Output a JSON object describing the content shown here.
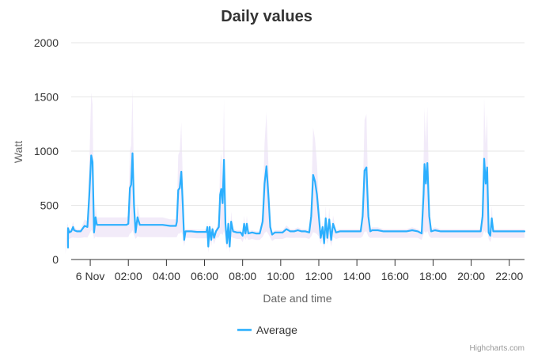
{
  "chart_data": {
    "type": "line",
    "title": "Daily values",
    "xlabel": "Date and time",
    "ylabel": "Watt",
    "ylim": [
      0,
      2000
    ],
    "xlim": [
      -1.0,
      22.8
    ],
    "yticks": [
      0,
      500,
      1000,
      1500,
      2000
    ],
    "xticks": [
      {
        "x": 0,
        "label": "6 Nov"
      },
      {
        "x": 2,
        "label": "02:00"
      },
      {
        "x": 4,
        "label": "04:00"
      },
      {
        "x": 6,
        "label": "06:00"
      },
      {
        "x": 8,
        "label": "08:00"
      },
      {
        "x": 10,
        "label": "10:00"
      },
      {
        "x": 12,
        "label": "12:00"
      },
      {
        "x": 14,
        "label": "14:00"
      },
      {
        "x": 16,
        "label": "16:00"
      },
      {
        "x": 18,
        "label": "18:00"
      },
      {
        "x": 20,
        "label": "20:00"
      },
      {
        "x": 22,
        "label": "22:00"
      }
    ],
    "grid": true,
    "legend_position": "bottom-center",
    "series": [
      {
        "name": "Average",
        "color": "#2caffe",
        "points": [
          [
            -1.3,
            110
          ],
          [
            -1.2,
            290
          ],
          [
            -1.1,
            250
          ],
          [
            -1.0,
            260
          ],
          [
            -0.9,
            300
          ],
          [
            -0.85,
            270
          ],
          [
            -0.7,
            260
          ],
          [
            -0.5,
            260
          ],
          [
            -0.3,
            310
          ],
          [
            -0.15,
            300
          ],
          [
            -0.05,
            600
          ],
          [
            0.05,
            960
          ],
          [
            0.12,
            900
          ],
          [
            0.2,
            250
          ],
          [
            0.28,
            390
          ],
          [
            0.35,
            320
          ],
          [
            0.6,
            320
          ],
          [
            0.9,
            320
          ],
          [
            1.2,
            320
          ],
          [
            1.5,
            320
          ],
          [
            1.8,
            320
          ],
          [
            1.9,
            320
          ],
          [
            2.0,
            330
          ],
          [
            2.08,
            660
          ],
          [
            2.15,
            690
          ],
          [
            2.22,
            980
          ],
          [
            2.3,
            500
          ],
          [
            2.38,
            250
          ],
          [
            2.48,
            390
          ],
          [
            2.6,
            320
          ],
          [
            3.0,
            320
          ],
          [
            3.4,
            320
          ],
          [
            3.8,
            320
          ],
          [
            4.2,
            310
          ],
          [
            4.5,
            310
          ],
          [
            4.55,
            350
          ],
          [
            4.62,
            640
          ],
          [
            4.7,
            660
          ],
          [
            4.78,
            810
          ],
          [
            4.86,
            500
          ],
          [
            4.93,
            180
          ],
          [
            5.0,
            260
          ],
          [
            5.3,
            260
          ],
          [
            5.6,
            255
          ],
          [
            5.9,
            255
          ],
          [
            6.1,
            255
          ],
          [
            6.15,
            300
          ],
          [
            6.2,
            120
          ],
          [
            6.27,
            300
          ],
          [
            6.35,
            180
          ],
          [
            6.42,
            280
          ],
          [
            6.5,
            200
          ],
          [
            6.6,
            260
          ],
          [
            6.75,
            300
          ],
          [
            6.82,
            600
          ],
          [
            6.88,
            650
          ],
          [
            6.95,
            520
          ],
          [
            7.02,
            920
          ],
          [
            7.1,
            330
          ],
          [
            7.18,
            150
          ],
          [
            7.25,
            330
          ],
          [
            7.32,
            120
          ],
          [
            7.4,
            350
          ],
          [
            7.5,
            260
          ],
          [
            7.7,
            250
          ],
          [
            7.9,
            250
          ],
          [
            8.0,
            220
          ],
          [
            8.08,
            330
          ],
          [
            8.15,
            240
          ],
          [
            8.22,
            330
          ],
          [
            8.3,
            240
          ],
          [
            8.5,
            250
          ],
          [
            8.7,
            240
          ],
          [
            8.9,
            240
          ],
          [
            9.05,
            350
          ],
          [
            9.15,
            700
          ],
          [
            9.25,
            860
          ],
          [
            9.35,
            600
          ],
          [
            9.45,
            300
          ],
          [
            9.55,
            230
          ],
          [
            9.7,
            250
          ],
          [
            9.9,
            250
          ],
          [
            10.1,
            250
          ],
          [
            10.3,
            280
          ],
          [
            10.5,
            260
          ],
          [
            10.7,
            260
          ],
          [
            10.9,
            270
          ],
          [
            11.1,
            260
          ],
          [
            11.3,
            260
          ],
          [
            11.5,
            250
          ],
          [
            11.6,
            400
          ],
          [
            11.7,
            780
          ],
          [
            11.8,
            720
          ],
          [
            11.9,
            600
          ],
          [
            12.0,
            400
          ],
          [
            12.1,
            200
          ],
          [
            12.2,
            300
          ],
          [
            12.28,
            150
          ],
          [
            12.36,
            380
          ],
          [
            12.45,
            200
          ],
          [
            12.55,
            370
          ],
          [
            12.65,
            180
          ],
          [
            12.75,
            330
          ],
          [
            12.9,
            250
          ],
          [
            13.1,
            260
          ],
          [
            13.4,
            260
          ],
          [
            13.7,
            260
          ],
          [
            14.0,
            260
          ],
          [
            14.2,
            260
          ],
          [
            14.3,
            400
          ],
          [
            14.4,
            820
          ],
          [
            14.5,
            850
          ],
          [
            14.6,
            400
          ],
          [
            14.7,
            260
          ],
          [
            14.8,
            270
          ],
          [
            15.1,
            270
          ],
          [
            15.4,
            260
          ],
          [
            15.7,
            260
          ],
          [
            16.0,
            260
          ],
          [
            16.3,
            260
          ],
          [
            16.6,
            260
          ],
          [
            16.9,
            270
          ],
          [
            17.2,
            260
          ],
          [
            17.4,
            240
          ],
          [
            17.5,
            600
          ],
          [
            17.55,
            880
          ],
          [
            17.62,
            700
          ],
          [
            17.7,
            890
          ],
          [
            17.8,
            400
          ],
          [
            17.9,
            260
          ],
          [
            18.1,
            270
          ],
          [
            18.4,
            260
          ],
          [
            18.7,
            260
          ],
          [
            19.0,
            260
          ],
          [
            19.3,
            260
          ],
          [
            19.6,
            260
          ],
          [
            19.9,
            260
          ],
          [
            20.2,
            260
          ],
          [
            20.5,
            260
          ],
          [
            20.6,
            400
          ],
          [
            20.68,
            930
          ],
          [
            20.76,
            700
          ],
          [
            20.84,
            850
          ],
          [
            20.92,
            250
          ],
          [
            21.0,
            220
          ],
          [
            21.08,
            380
          ],
          [
            21.16,
            260
          ],
          [
            21.3,
            260
          ],
          [
            21.6,
            260
          ],
          [
            22.0,
            260
          ],
          [
            22.4,
            260
          ],
          [
            22.8,
            260
          ]
        ]
      }
    ]
  },
  "footer": {
    "credits": "Highcharts.com"
  }
}
